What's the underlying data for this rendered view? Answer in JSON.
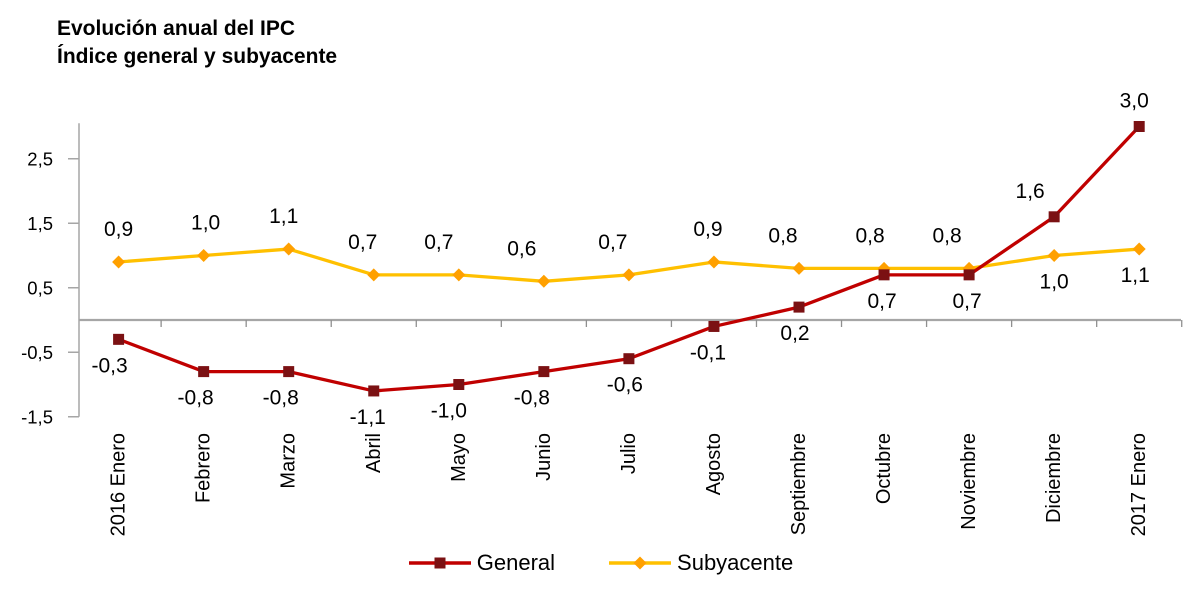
{
  "chart_data": {
    "type": "line",
    "title": "Evolución anual del IPC",
    "subtitle": "Índice general y subyacente",
    "categories": [
      "2016 Enero",
      "Febrero",
      "Marzo",
      "Abril",
      "Mayo",
      "Junio",
      "Julio",
      "Agosto",
      "Septiembre",
      "Octubre",
      "Noviembre",
      "Diciembre",
      "2017 Enero"
    ],
    "series": [
      {
        "name": "General",
        "color": "#C00000",
        "marker_color": "#7B1113",
        "marker": "square",
        "values": [
          -0.3,
          -0.8,
          -0.8,
          -1.1,
          -1.0,
          -0.8,
          -0.6,
          -0.1,
          0.2,
          0.7,
          0.7,
          1.6,
          3.0
        ],
        "labels": [
          "-0,3",
          "-0,8",
          "-0,8",
          "-1,1",
          "-1,0",
          "-0,8",
          "-0,6",
          "-0,1",
          "0,2",
          "0,7",
          "0,7",
          "1,6",
          "3,0"
        ],
        "label_side": [
          "below",
          "below",
          "below",
          "below",
          "below",
          "below",
          "below",
          "below",
          "below",
          "below",
          "below",
          "above",
          "above"
        ],
        "label_dx": [
          -9,
          -8,
          -8,
          -6,
          -10,
          -12,
          -4,
          -6,
          -4,
          -2,
          -2,
          -24,
          -5
        ]
      },
      {
        "name": "Subyacente",
        "color": "#FFC000",
        "marker_color": "#FFA000",
        "marker": "diamond",
        "values": [
          0.9,
          1.0,
          1.1,
          0.7,
          0.7,
          0.6,
          0.7,
          0.9,
          0.8,
          0.8,
          0.8,
          1.0,
          1.1
        ],
        "labels": [
          "0,9",
          "1,0",
          "1,1",
          "0,7",
          "0,7",
          "0,6",
          "0,7",
          "0,9",
          "0,8",
          "0,8",
          "0,8",
          "1,0",
          "1,1"
        ],
        "label_side": [
          "above",
          "above",
          "above",
          "above",
          "above",
          "above",
          "above",
          "above",
          "above",
          "above",
          "above",
          "below",
          "below"
        ],
        "label_dx": [
          0,
          2,
          -5,
          -11,
          -20,
          -22,
          -16,
          -6,
          -16,
          -14,
          -22,
          0,
          -4
        ]
      }
    ],
    "y_axis": {
      "min": -1.5,
      "max": 3.05,
      "ticks": [
        2.5,
        1.5,
        0.5,
        -0.5,
        -1.5
      ],
      "tick_labels": [
        "2,5",
        "1,5",
        "0,5",
        "-0,5",
        "-1,5"
      ]
    },
    "x_axis_cross": 0,
    "grid": false,
    "legend_position": "bottom"
  }
}
